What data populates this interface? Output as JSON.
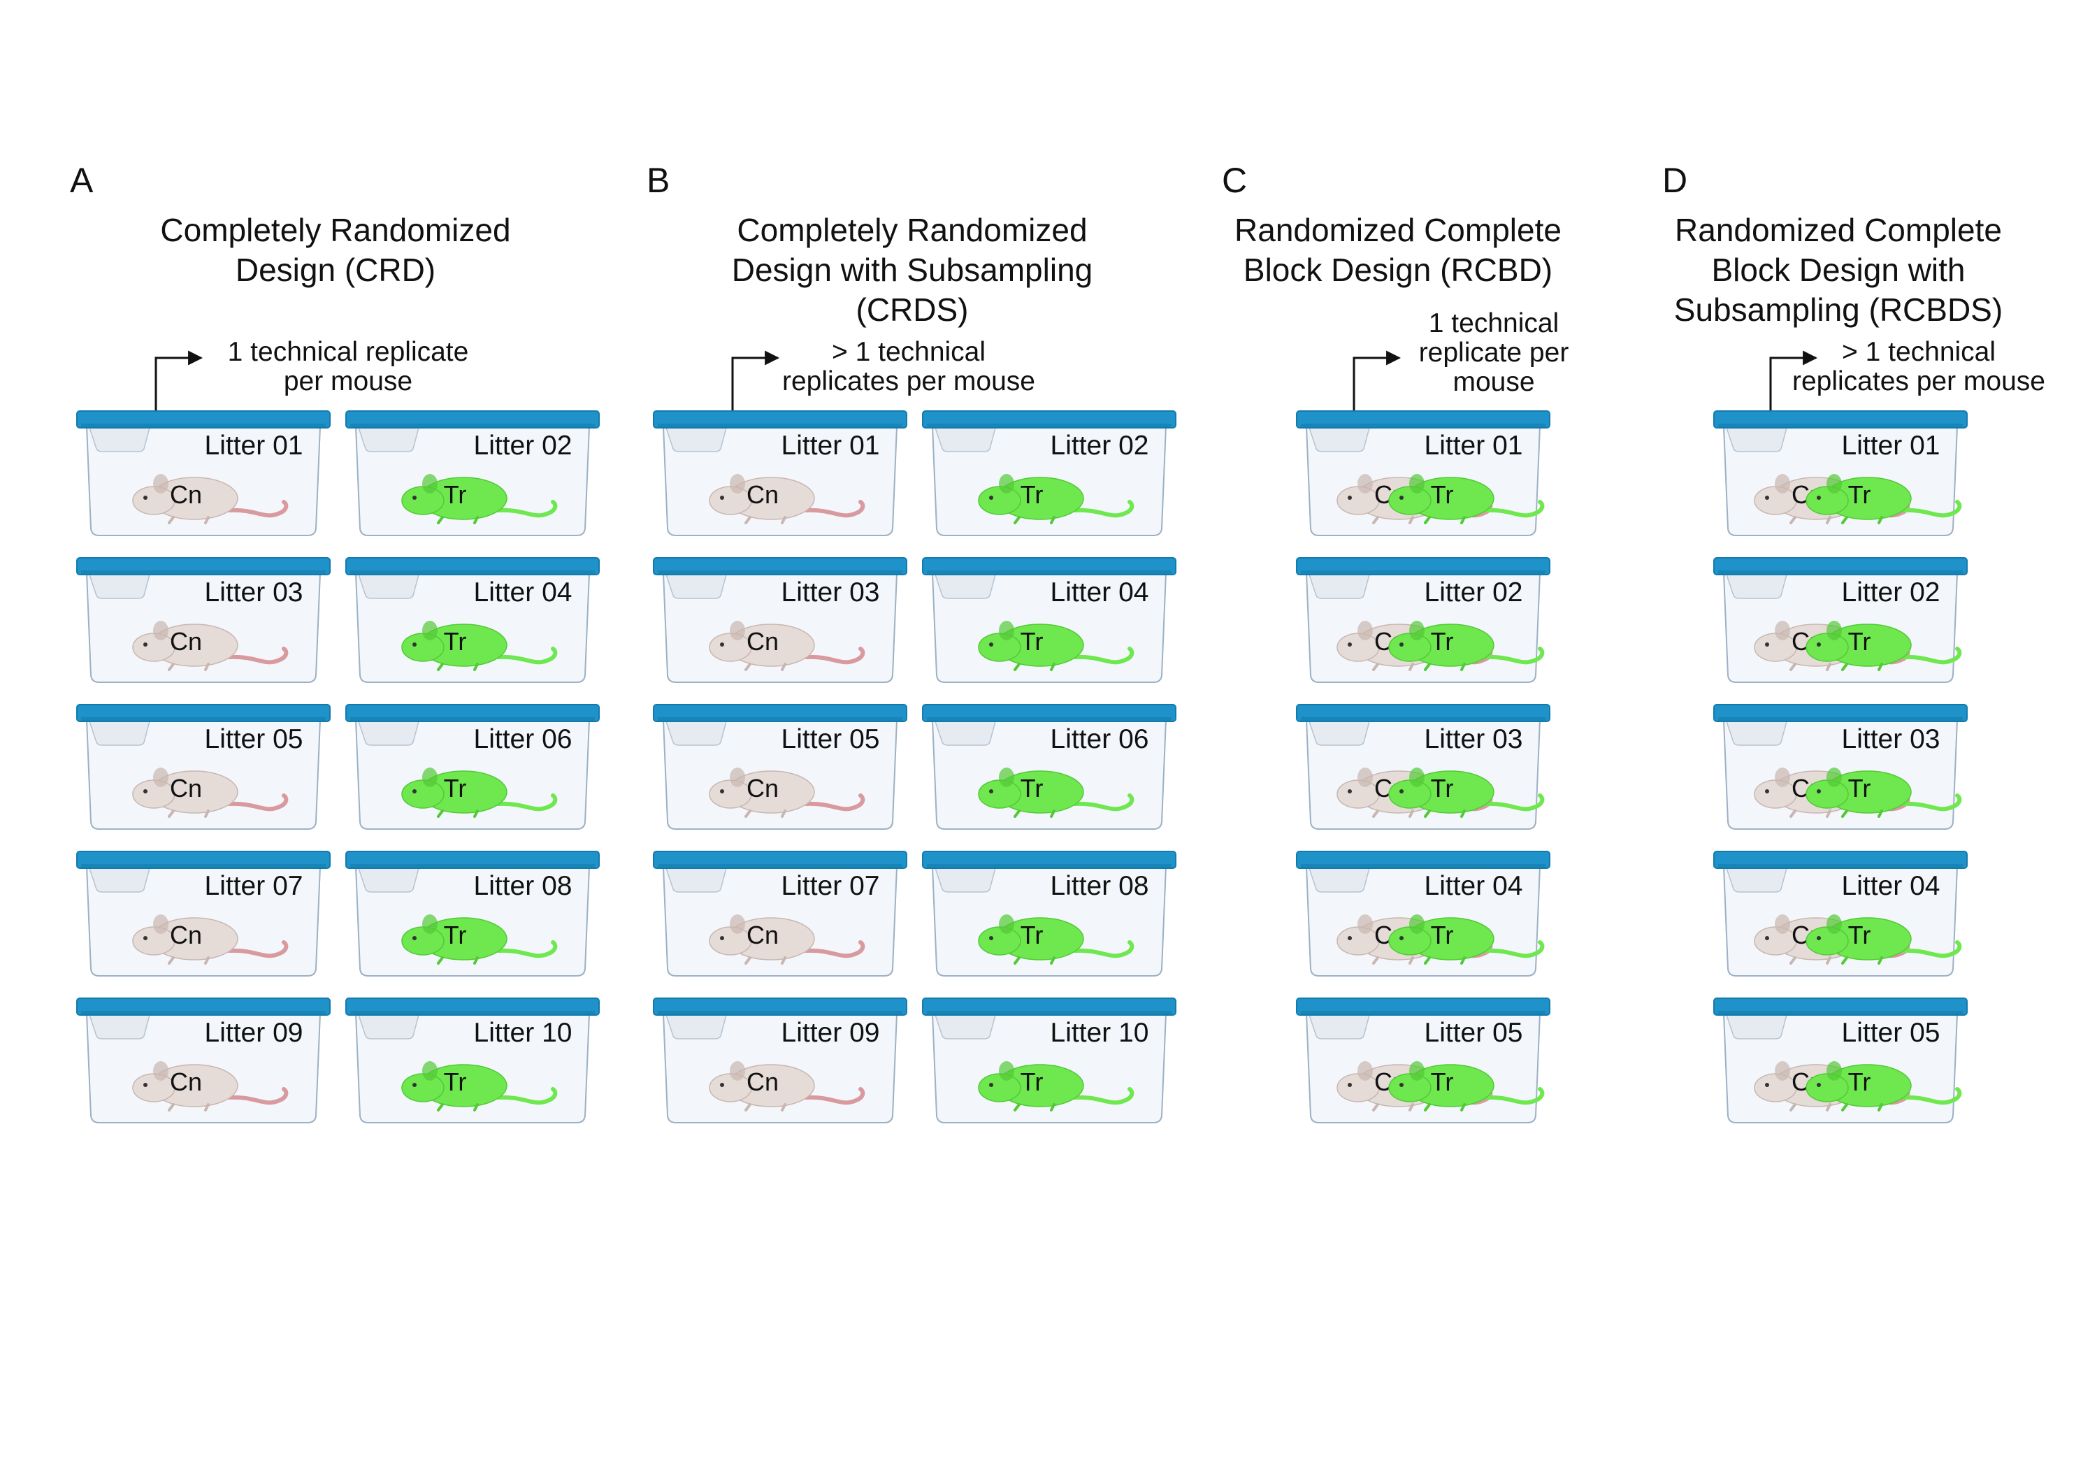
{
  "colors": {
    "lid": "#1f93c9",
    "lid_dark": "#127bae",
    "box_fill": "#f3f7fc",
    "box_stroke": "#9db1c4",
    "control_mouse": "#e5dcd8",
    "control_tail": "#d99a9f",
    "treated_mouse": "#6fe84f",
    "treated_mouse_dark": "#52c936",
    "arrow": "#111111"
  },
  "panels": [
    {
      "letter": "A",
      "title_lines": [
        "Completely Randomized",
        "Design (CRD)"
      ],
      "note_lines": [
        "1 technical replicate",
        "per mouse"
      ],
      "mouse_labels": {
        "control": "Cn",
        "treated": "Tr"
      },
      "cages": [
        {
          "label": "Litter 01",
          "group": "control"
        },
        {
          "label": "Litter 02",
          "group": "treated"
        },
        {
          "label": "Litter 03",
          "group": "control"
        },
        {
          "label": "Litter 04",
          "group": "treated"
        },
        {
          "label": "Litter 05",
          "group": "control"
        },
        {
          "label": "Litter 06",
          "group": "treated"
        },
        {
          "label": "Litter 07",
          "group": "control"
        },
        {
          "label": "Litter 08",
          "group": "treated"
        },
        {
          "label": "Litter 09",
          "group": "control"
        },
        {
          "label": "Litter 10",
          "group": "treated"
        }
      ]
    },
    {
      "letter": "B",
      "title_lines": [
        "Completely Randomized",
        "Design with Subsampling",
        "(CRDS)"
      ],
      "note_lines": [
        "> 1 technical",
        "replicates per mouse"
      ],
      "mouse_labels": {
        "control": "Cn",
        "treated": "Tr"
      },
      "cages": [
        {
          "label": "Litter 01",
          "group": "control"
        },
        {
          "label": "Litter 02",
          "group": "treated"
        },
        {
          "label": "Litter 03",
          "group": "control"
        },
        {
          "label": "Litter 04",
          "group": "treated"
        },
        {
          "label": "Litter 05",
          "group": "control"
        },
        {
          "label": "Litter 06",
          "group": "treated"
        },
        {
          "label": "Litter 07",
          "group": "control"
        },
        {
          "label": "Litter 08",
          "group": "treated"
        },
        {
          "label": "Litter 09",
          "group": "control"
        },
        {
          "label": "Litter 10",
          "group": "treated"
        }
      ]
    },
    {
      "letter": "C",
      "title_lines": [
        "Randomized Complete",
        "Block Design (RCBD)"
      ],
      "note_lines": [
        "1 technical",
        "replicate per",
        "mouse"
      ],
      "mouse_labels": {
        "control": "Cn",
        "treated": "Tr"
      },
      "cages": [
        {
          "label": "Litter 01",
          "group": "both"
        },
        {
          "label": "Litter 02",
          "group": "both"
        },
        {
          "label": "Litter 03",
          "group": "both"
        },
        {
          "label": "Litter 04",
          "group": "both"
        },
        {
          "label": "Litter 05",
          "group": "both"
        }
      ]
    },
    {
      "letter": "D",
      "title_lines": [
        "Randomized Complete",
        "Block Design with",
        "Subsampling (RCBDS)"
      ],
      "note_lines": [
        "> 1 technical",
        "replicates per mouse"
      ],
      "mouse_labels": {
        "control": "Cn",
        "treated": "Tr"
      },
      "cages": [
        {
          "label": "Litter 01",
          "group": "both"
        },
        {
          "label": "Litter 02",
          "group": "both"
        },
        {
          "label": "Litter 03",
          "group": "both"
        },
        {
          "label": "Litter 04",
          "group": "both"
        },
        {
          "label": "Litter 05",
          "group": "both"
        }
      ]
    }
  ]
}
